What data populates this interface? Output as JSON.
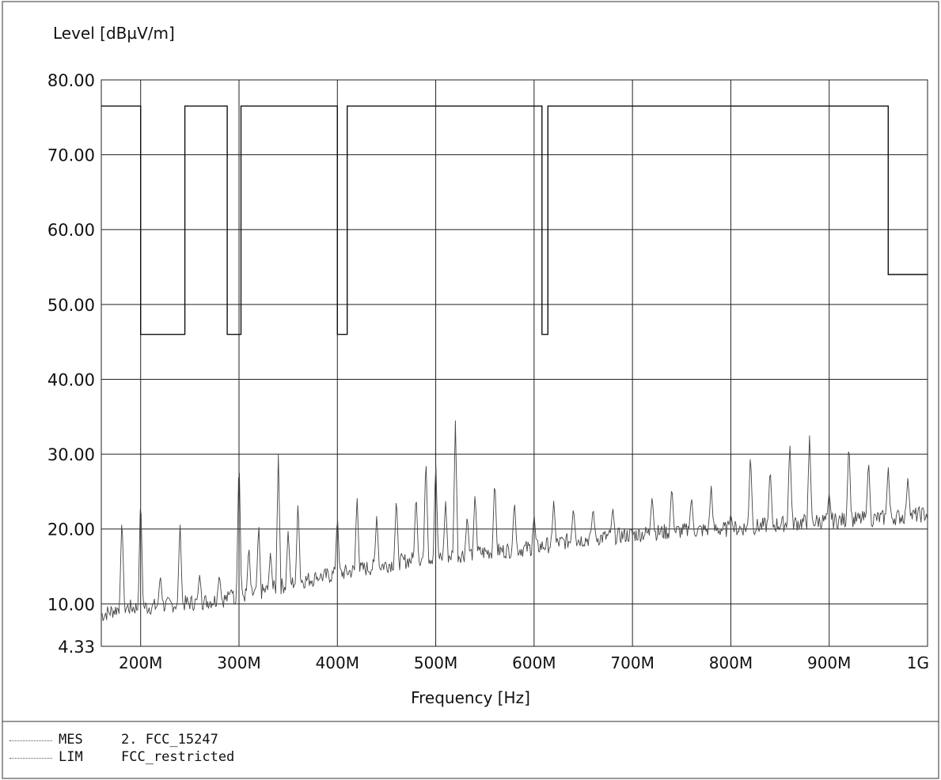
{
  "chart_data": {
    "type": "line",
    "ylabel": "Level [dBµV/m]",
    "xlabel": "Frequency [Hz]",
    "xlim": [
      160,
      1000
    ],
    "ylim": [
      4.33,
      80
    ],
    "x_ticks": [
      {
        "value": 200,
        "label": "200M"
      },
      {
        "value": 300,
        "label": "300M"
      },
      {
        "value": 400,
        "label": "400M"
      },
      {
        "value": 500,
        "label": "500M"
      },
      {
        "value": 600,
        "label": "600M"
      },
      {
        "value": 700,
        "label": "700M"
      },
      {
        "value": 800,
        "label": "800M"
      },
      {
        "value": 900,
        "label": "900M"
      },
      {
        "value": 1000,
        "label": "1G"
      }
    ],
    "y_ticks": [
      {
        "value": 80,
        "label": "80.00"
      },
      {
        "value": 70,
        "label": "70.00"
      },
      {
        "value": 60,
        "label": "60.00"
      },
      {
        "value": 50,
        "label": "50.00"
      },
      {
        "value": 40,
        "label": "40.00"
      },
      {
        "value": 30,
        "label": "30.00"
      },
      {
        "value": 20,
        "label": "20.00"
      },
      {
        "value": 10,
        "label": "10.00"
      },
      {
        "value": 4.33,
        "label": "4.33"
      }
    ],
    "grid": true,
    "legend": [
      {
        "code": "MES",
        "name": "2. FCC_15247"
      },
      {
        "code": "LIM",
        "name": "FCC_restricted"
      }
    ],
    "limit_line": {
      "x": [
        160,
        200,
        200,
        245,
        245,
        288,
        288,
        302,
        302,
        400,
        400,
        410,
        410,
        608,
        608,
        614,
        614,
        960,
        960,
        1000
      ],
      "y": [
        76.5,
        76.5,
        46,
        46,
        76.5,
        76.5,
        46,
        46,
        76.5,
        76.5,
        46,
        46,
        76.5,
        76.5,
        46,
        46,
        76.5,
        76.5,
        54,
        54
      ]
    },
    "baseline": {
      "x": [
        160,
        180,
        200,
        240,
        280,
        320,
        360,
        400,
        440,
        480,
        520,
        560,
        600,
        640,
        680,
        720,
        760,
        800,
        840,
        880,
        920,
        960,
        1000
      ],
      "y": [
        8.5,
        9.5,
        9.5,
        10,
        10.5,
        11.5,
        13,
        14,
        15,
        16,
        16.5,
        17,
        17.5,
        18.5,
        19,
        19.5,
        19.8,
        20,
        20.5,
        21,
        21.2,
        21.5,
        22
      ]
    },
    "peaks": {
      "x": [
        181,
        200,
        220,
        240,
        260,
        280,
        292,
        300,
        310,
        320,
        332,
        340,
        350,
        360,
        380,
        400,
        420,
        440,
        460,
        480,
        490,
        500,
        510,
        520,
        532,
        540,
        560,
        580,
        600,
        620,
        640,
        660,
        680,
        720,
        740,
        760,
        780,
        800,
        820,
        840,
        860,
        880,
        900,
        920,
        940,
        960,
        980
      ],
      "y": [
        22,
        25,
        14,
        21,
        14,
        14,
        12,
        30.5,
        18,
        21,
        17,
        30,
        20,
        24,
        13,
        22,
        24.5,
        22,
        24.5,
        25,
        30,
        29.5,
        24,
        34.5,
        22,
        25,
        27,
        24,
        22,
        24,
        23,
        23,
        23,
        24.5,
        26,
        24.5,
        26,
        22,
        30.5,
        28.5,
        32,
        32.5,
        25,
        32,
        29.5,
        28.5,
        27
      ]
    }
  }
}
